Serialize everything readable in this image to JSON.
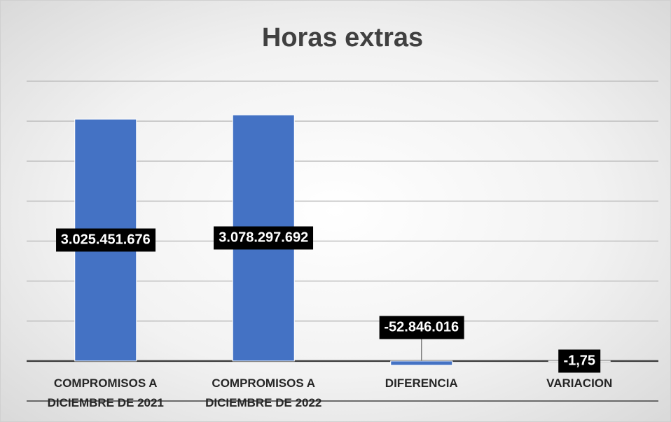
{
  "chart_data": {
    "type": "bar",
    "title": "Horas extras",
    "categories": [
      "COMPROMISOS A DICIEMBRE DE 2021",
      "COMPROMISOS A DICIEMBRE DE 2022",
      "DIFERENCIA",
      "VARIACION"
    ],
    "values": [
      3025451676,
      3078297692,
      -52846016,
      -1.75
    ],
    "value_labels": [
      "3.025.451.676",
      "3.078.297.692",
      "-52.846.016",
      "-1,75"
    ],
    "color": "#4472c4",
    "ylim": [
      -500000000,
      3500000000
    ],
    "yticks": [
      -500000000,
      0,
      500000000,
      1000000000,
      1500000000,
      2000000000,
      2500000000,
      3000000000,
      3500000000
    ],
    "grid": true
  }
}
